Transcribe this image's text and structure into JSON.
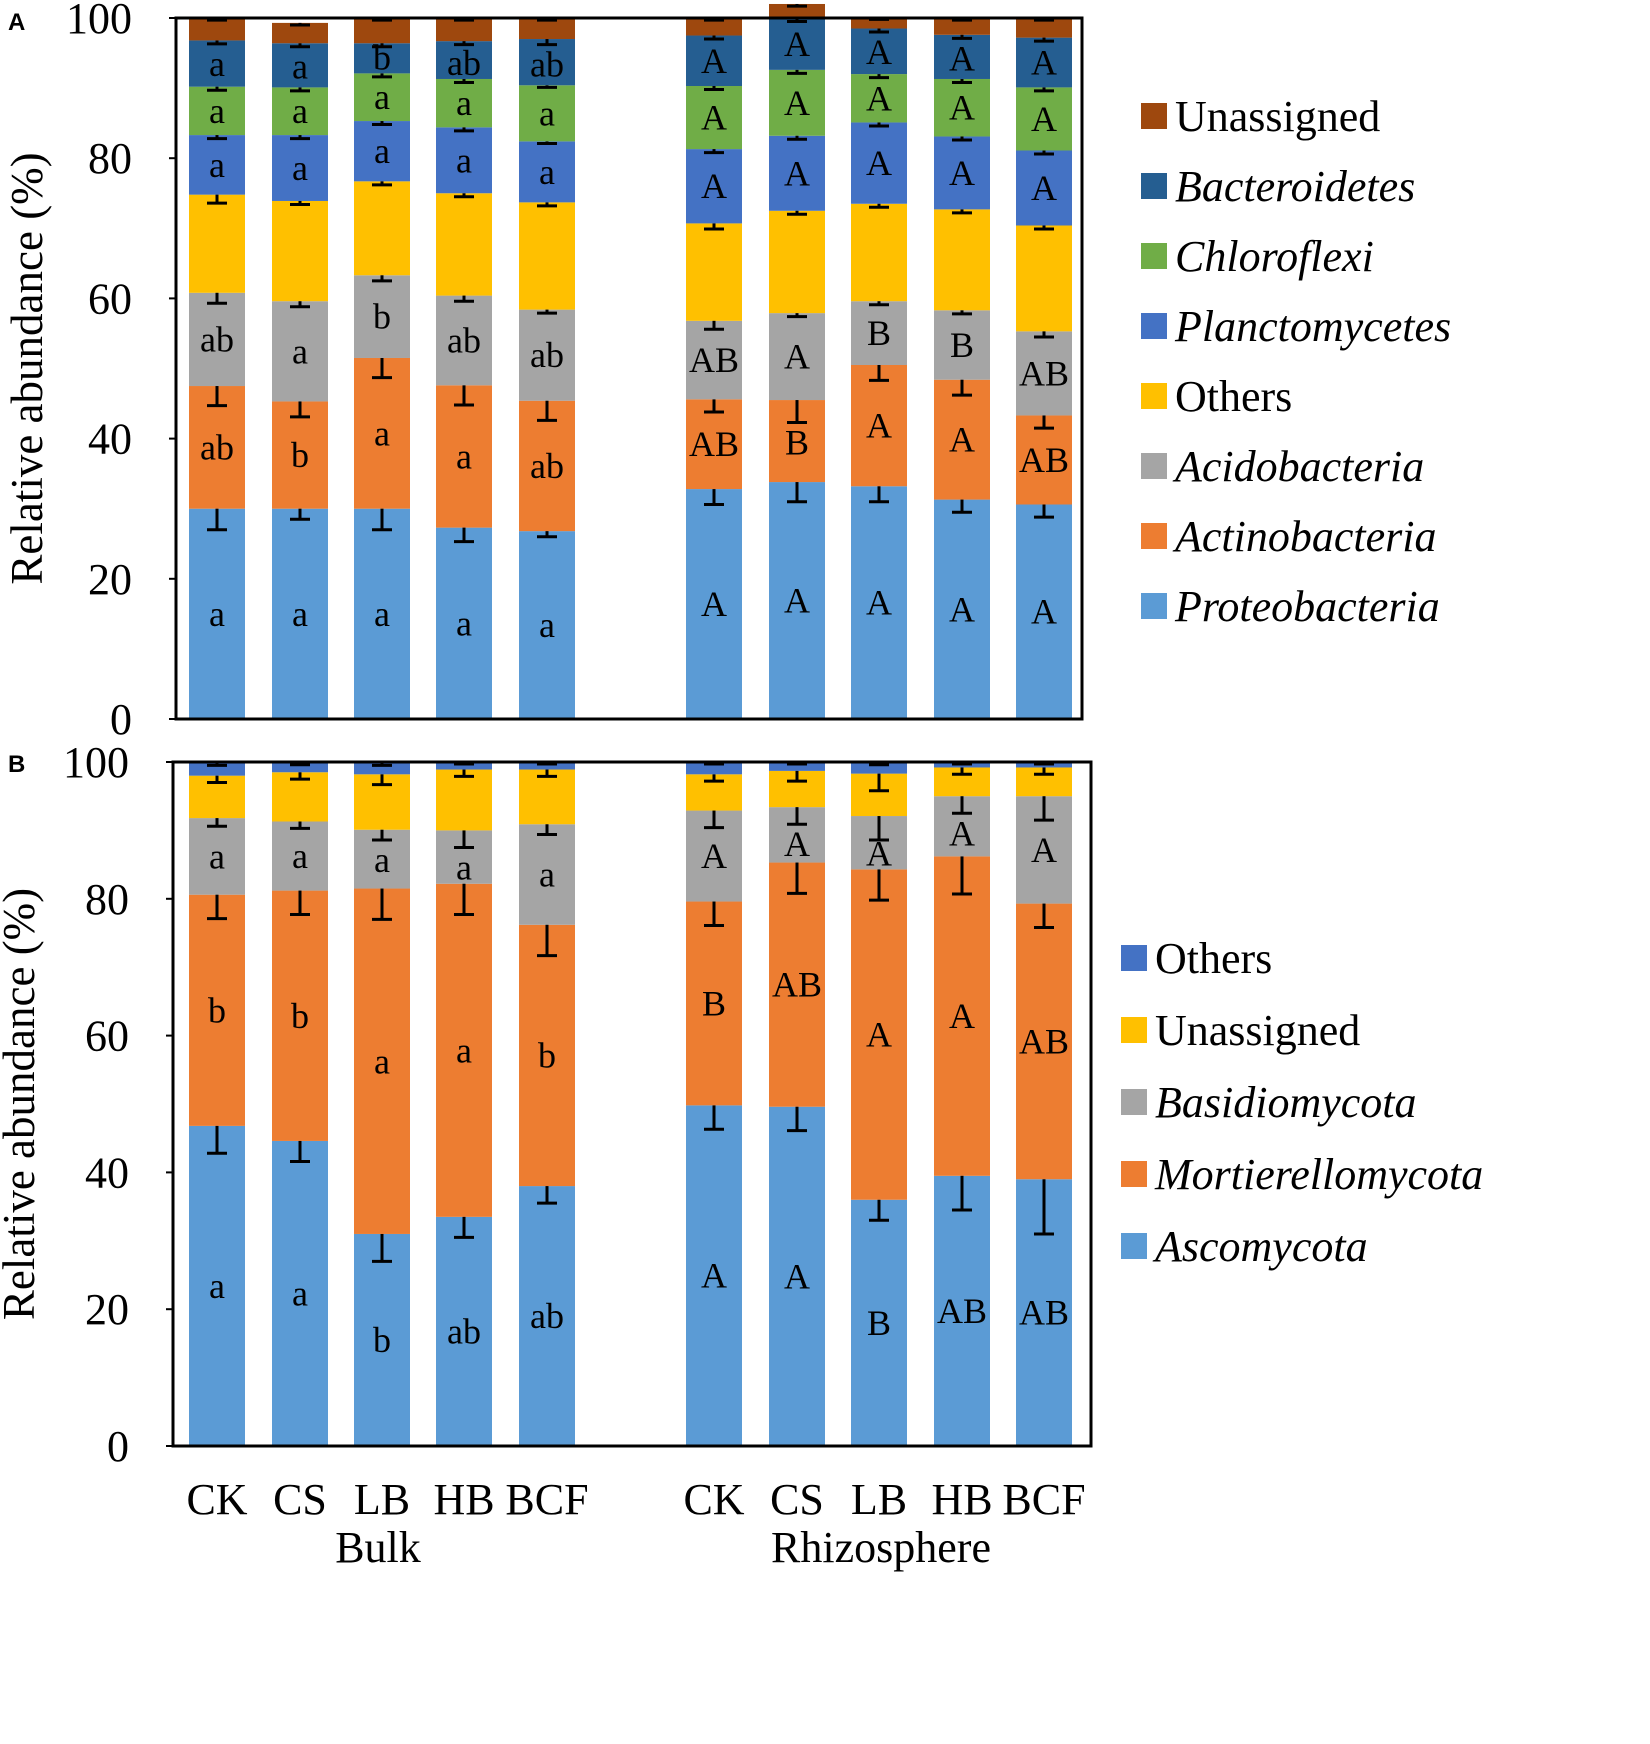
{
  "chart_data": [
    {
      "panel": "A",
      "type": "bar",
      "stacked": true,
      "ylabel": "Relative abundance (%)",
      "ylim": [
        0,
        100
      ],
      "yticks": [
        0,
        20,
        40,
        60,
        80,
        100
      ],
      "groups": [
        "Bulk",
        "Rhizosphere"
      ],
      "categories": [
        "CK",
        "CS",
        "LB",
        "HB",
        "BCF",
        "CK",
        "CS",
        "LB",
        "HB",
        "BCF"
      ],
      "series": [
        {
          "name": "Proteobacteria",
          "italic": true,
          "color": "#5B9BD5",
          "values": [
            30.0,
            30.0,
            30.0,
            27.3,
            26.8,
            32.8,
            33.8,
            33.2,
            31.3,
            30.6
          ],
          "errors": [
            3.0,
            1.5,
            3.0,
            2.0,
            0.8,
            2.2,
            2.8,
            2.2,
            1.8,
            1.8
          ],
          "letters": [
            "a",
            "a",
            "a",
            "a",
            "a",
            "A",
            "A",
            "A",
            "A",
            "A"
          ]
        },
        {
          "name": "Actinobacteria",
          "italic": true,
          "color": "#ED7D31",
          "values": [
            17.5,
            15.3,
            21.5,
            20.3,
            18.6,
            12.8,
            11.7,
            17.3,
            17.1,
            12.7
          ],
          "errors": [
            2.8,
            2.2,
            2.8,
            2.8,
            2.8,
            1.8,
            3.2,
            2.2,
            2.2,
            1.8
          ],
          "letters": [
            "ab",
            "b",
            "a",
            "a",
            "ab",
            "AB",
            "B",
            "A",
            "A",
            "AB"
          ]
        },
        {
          "name": "Acidobacteria",
          "italic": true,
          "color": "#A5A5A5",
          "values": [
            13.3,
            14.3,
            11.8,
            12.8,
            13.0,
            11.2,
            12.4,
            9.1,
            9.9,
            12.0
          ],
          "errors": [
            1.5,
            0.8,
            0.8,
            0.8,
            0.5,
            1.2,
            0.5,
            0.5,
            0.5,
            0.8
          ],
          "letters": [
            "ab",
            "a",
            "b",
            "ab",
            "ab",
            "AB",
            "A",
            "B",
            "B",
            "AB"
          ]
        },
        {
          "name": "Others",
          "italic": false,
          "color": "#FFC000",
          "values": [
            14.0,
            14.3,
            13.4,
            14.6,
            15.3,
            13.9,
            14.6,
            13.9,
            14.4,
            15.1
          ],
          "errors": [
            1.2,
            0.5,
            0.5,
            0.5,
            0.5,
            0.8,
            0.5,
            0.5,
            0.5,
            0.5
          ],
          "letters": [
            "",
            "",
            "",
            "",
            "",
            "",
            "",
            "",
            "",
            ""
          ]
        },
        {
          "name": "Planctomycetes",
          "italic": true,
          "color": "#4472C4",
          "values": [
            8.5,
            9.4,
            8.6,
            9.4,
            8.7,
            10.6,
            10.7,
            11.6,
            10.4,
            10.7
          ],
          "errors": [
            0.5,
            0.5,
            0.5,
            0.5,
            0.3,
            0.5,
            0.5,
            0.5,
            0.5,
            0.5
          ],
          "letters": [
            "a",
            "a",
            "a",
            "a",
            "a",
            "A",
            "A",
            "A",
            "A",
            "A"
          ]
        },
        {
          "name": "Chloroflexi",
          "italic": true,
          "color": "#70AD47",
          "values": [
            6.9,
            6.8,
            6.8,
            6.9,
            8.0,
            9.0,
            9.4,
            6.9,
            8.2,
            9.0
          ],
          "errors": [
            0.5,
            0.5,
            0.5,
            0.5,
            0.3,
            0.5,
            0.5,
            0.5,
            0.5,
            0.5
          ],
          "letters": [
            "a",
            "a",
            "a",
            "a",
            "a",
            "A",
            "A",
            "A",
            "A",
            "A"
          ]
        },
        {
          "name": "Bacteroidetes",
          "italic": true,
          "color": "#255E91",
          "values": [
            6.6,
            6.3,
            4.3,
            5.4,
            6.6,
            7.2,
            7.4,
            6.5,
            6.3,
            7.1
          ],
          "errors": [
            0.5,
            0.5,
            0.5,
            0.5,
            0.8,
            0.5,
            0.5,
            0.5,
            0.5,
            0.5
          ],
          "letters": [
            "a",
            "a",
            "b",
            "ab",
            "ab",
            "A",
            "A",
            "A",
            "A",
            "A"
          ]
        },
        {
          "name": "Unassigned",
          "italic": false,
          "color": "#9E480E",
          "values": [
            3.2,
            2.9,
            3.6,
            3.3,
            3.0,
            2.5,
            2.0,
            1.6,
            2.4,
            2.8
          ],
          "errors": [
            0.3,
            0.3,
            0.3,
            0.3,
            0.3,
            0.3,
            0.3,
            0.3,
            0.3,
            0.3
          ],
          "letters": [
            "",
            "",
            "",
            "",
            "",
            "",
            "",
            "",
            "",
            ""
          ]
        }
      ]
    },
    {
      "panel": "B",
      "type": "bar",
      "stacked": true,
      "ylabel": "Relative abundance (%)",
      "ylim": [
        0,
        100
      ],
      "yticks": [
        0,
        20,
        40,
        60,
        80,
        100
      ],
      "groups": [
        "Bulk",
        "Rhizosphere"
      ],
      "categories": [
        "CK",
        "CS",
        "LB",
        "HB",
        "BCF",
        "CK",
        "CS",
        "LB",
        "HB",
        "BCF"
      ],
      "series": [
        {
          "name": "Ascomycota",
          "italic": true,
          "color": "#5B9BD5",
          "values": [
            46.8,
            44.6,
            31.0,
            33.5,
            38.0,
            49.8,
            49.6,
            36.0,
            39.5,
            39.0
          ],
          "errors": [
            4.0,
            3.0,
            4.0,
            3.0,
            2.5,
            3.5,
            3.5,
            3.0,
            5.0,
            8.0
          ],
          "letters": [
            "a",
            "a",
            "b",
            "ab",
            "ab",
            "A",
            "A",
            "B",
            "AB",
            "AB"
          ]
        },
        {
          "name": "Mortierellomycota",
          "italic": true,
          "color": "#ED7D31",
          "values": [
            33.8,
            36.6,
            50.5,
            48.7,
            38.2,
            29.8,
            35.7,
            48.3,
            46.7,
            40.3
          ],
          "errors": [
            3.5,
            3.5,
            4.5,
            4.5,
            4.5,
            3.5,
            4.5,
            4.5,
            5.5,
            3.5
          ],
          "letters": [
            "b",
            "b",
            "a",
            "a",
            "b",
            "B",
            "AB",
            "A",
            "A",
            "AB"
          ]
        },
        {
          "name": "Basidiomycota",
          "italic": true,
          "color": "#A5A5A5",
          "values": [
            11.2,
            10.1,
            8.6,
            7.8,
            14.7,
            13.3,
            8.1,
            7.8,
            8.8,
            15.7
          ],
          "errors": [
            1.2,
            1.0,
            1.5,
            2.5,
            1.5,
            2.5,
            2.5,
            3.5,
            2.5,
            3.5
          ],
          "letters": [
            "a",
            "a",
            "a",
            "a",
            "a",
            "A",
            "A",
            "A",
            "A",
            "A"
          ]
        },
        {
          "name": "Unassigned",
          "italic": false,
          "color": "#FFC000",
          "values": [
            6.2,
            7.2,
            8.1,
            8.9,
            8.0,
            5.3,
            5.3,
            6.2,
            4.2,
            4.2
          ],
          "errors": [
            1.0,
            1.0,
            1.5,
            1.0,
            1.0,
            1.0,
            1.5,
            2.5,
            1.0,
            1.0
          ],
          "letters": [
            "",
            "",
            "",
            "",
            "",
            "",
            "",
            "",
            "",
            ""
          ]
        },
        {
          "name": "Others",
          "italic": false,
          "color": "#4472C4",
          "values": [
            1.8,
            1.4,
            1.6,
            1.1,
            1.1,
            1.8,
            1.3,
            1.6,
            0.8,
            0.8
          ],
          "errors": [
            0.3,
            0.3,
            0.3,
            0.3,
            0.3,
            0.3,
            0.3,
            0.3,
            0.3,
            0.3
          ],
          "letters": [
            "",
            "",
            "",
            "",
            "",
            "",
            "",
            "",
            "",
            ""
          ]
        }
      ]
    }
  ]
}
